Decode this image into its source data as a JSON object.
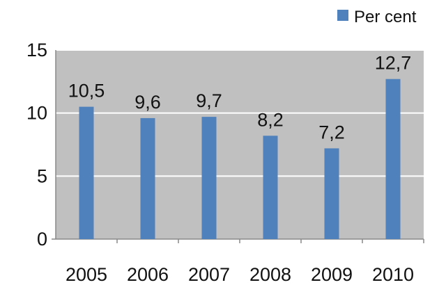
{
  "chart_data": {
    "type": "bar",
    "categories": [
      "2005",
      "2006",
      "2007",
      "2008",
      "2009",
      "2010"
    ],
    "series": [
      {
        "name": "Per cent",
        "values": [
          10.5,
          9.6,
          9.7,
          8.2,
          7.2,
          12.7
        ]
      }
    ],
    "data_labels": [
      "10,5",
      "9,6",
      "9,7",
      "8,2",
      "7,2",
      "12,7"
    ],
    "yticks": [
      "0",
      "5",
      "10",
      "15"
    ],
    "ylim": [
      0,
      15
    ],
    "legend_position": "top-right",
    "grid": true,
    "colors": {
      "bar": "#4f81bd",
      "plot_background": "#c0c0c0",
      "gridline": "#ffffff"
    }
  }
}
